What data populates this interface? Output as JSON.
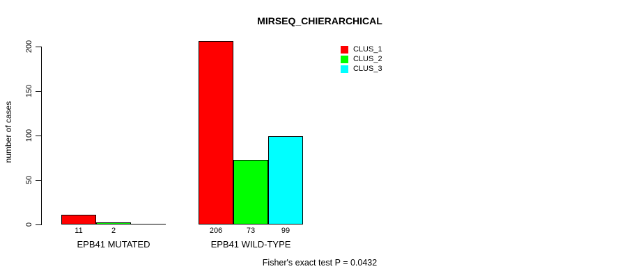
{
  "chart_data": {
    "type": "bar",
    "title": "MIRSEQ_CHIERARCHICAL",
    "ylabel": "number of cases",
    "xlabel": "",
    "annotation": "Fisher's exact test P = 0.0432",
    "categories": [
      "EPB41 MUTATED",
      "EPB41 WILD-TYPE"
    ],
    "series": [
      {
        "name": "CLUS_1",
        "color": "#ff0000",
        "values": [
          11,
          206
        ]
      },
      {
        "name": "CLUS_2",
        "color": "#00ff00",
        "values": [
          2,
          73
        ]
      },
      {
        "name": "CLUS_3",
        "color": "#00ffff",
        "values": [
          0,
          99
        ]
      }
    ],
    "bar_value_labels": [
      [
        "11",
        "2",
        ""
      ],
      [
        "206",
        "73",
        "99"
      ]
    ],
    "yticks": [
      0,
      50,
      100,
      150,
      200
    ],
    "ylim": [
      0,
      206
    ],
    "legend_position": "top-right",
    "grid": false,
    "background_color": "#ffffff",
    "text_color": "#000000",
    "bar_border_color": "#000000"
  }
}
